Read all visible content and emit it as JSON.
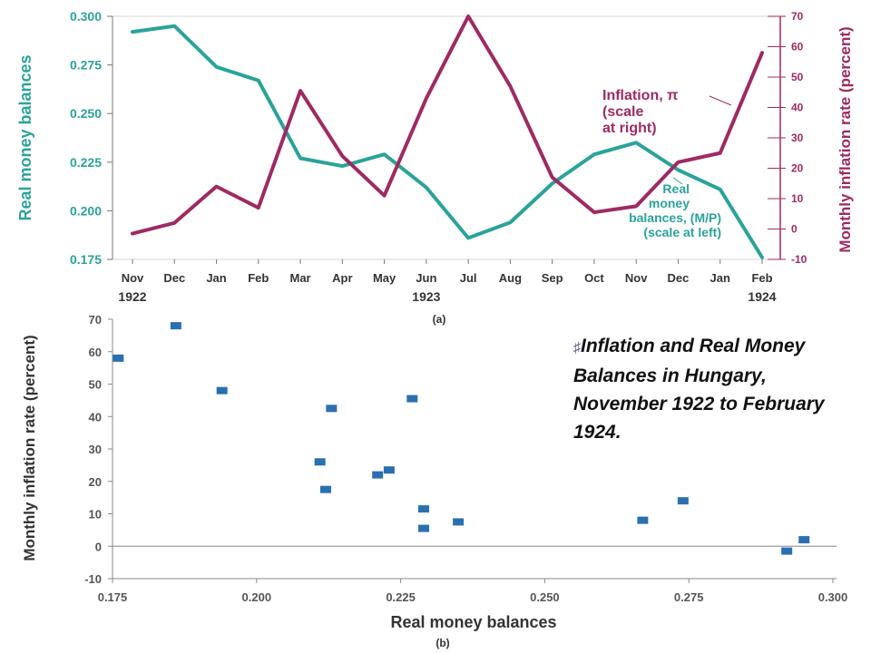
{
  "caption": {
    "bullet": "♯",
    "text": "Inflation and Real Money Balances in Hungary, November 1922 to February 1924."
  },
  "chart_data": [
    {
      "type": "line",
      "panel_label": "(a)",
      "categories": [
        "Nov",
        "Dec",
        "Jan",
        "Feb",
        "Mar",
        "Apr",
        "May",
        "Jun",
        "Jul",
        "Aug",
        "Sep",
        "Oct",
        "Nov",
        "Dec",
        "Jan",
        "Feb"
      ],
      "year_labels": [
        {
          "label": "1922",
          "category_index": 0
        },
        {
          "label": "1923",
          "category_index": 7
        },
        {
          "label": "1924",
          "category_index": 15
        }
      ],
      "left_axis": {
        "label": "Real money balances",
        "ylim": [
          0.175,
          0.3
        ],
        "ticks": [
          "0.300",
          "0.275",
          "0.250",
          "0.225",
          "0.200",
          "0.175"
        ],
        "tick_values": [
          0.3,
          0.275,
          0.25,
          0.225,
          0.2,
          0.175
        ]
      },
      "right_axis": {
        "label": "Monthly inflation rate (percent)",
        "ylim": [
          -10,
          70
        ],
        "ticks": [
          "70",
          "60",
          "50",
          "40",
          "30",
          "20",
          "10",
          "0",
          "-10"
        ],
        "tick_values": [
          70,
          60,
          50,
          40,
          30,
          20,
          10,
          0,
          -10
        ]
      },
      "series": [
        {
          "name": "Real money balances",
          "axis": "left",
          "color": "#2aa39a",
          "values": [
            0.292,
            0.295,
            0.274,
            0.267,
            0.227,
            0.223,
            0.229,
            0.212,
            0.186,
            0.194,
            0.214,
            0.229,
            0.235,
            0.221,
            0.211,
            0.176
          ],
          "annotation_lines": [
            "Real",
            "money",
            "balances, (M/P)",
            "(scale at left)"
          ]
        },
        {
          "name": "Inflation",
          "axis": "right",
          "color": "#9e2a63",
          "values": [
            -1.5,
            2,
            14,
            7,
            45.5,
            24,
            11,
            43,
            70,
            47,
            17,
            5.5,
            7.5,
            22,
            25,
            58
          ],
          "annotation_lines": [
            "Inflation, π",
            "(scale",
            "at right)"
          ]
        }
      ]
    },
    {
      "type": "scatter",
      "panel_label": "(b)",
      "xlabel": "Real money balances",
      "ylabel": "Monthly inflation rate (percent)",
      "xlim": [
        0.175,
        0.3
      ],
      "ylim": [
        -10,
        70
      ],
      "xticks": [
        "0.175",
        "0.200",
        "0.225",
        "0.250",
        "0.275",
        "0.300"
      ],
      "xtick_values": [
        0.175,
        0.2,
        0.225,
        0.25,
        0.275,
        0.3
      ],
      "yticks": [
        "70",
        "60",
        "50",
        "40",
        "30",
        "20",
        "10",
        "0",
        "-10"
      ],
      "ytick_values": [
        70,
        60,
        50,
        40,
        30,
        20,
        10,
        0,
        -10
      ],
      "marker_color": "#2a6fb0",
      "points": [
        {
          "x": 0.292,
          "y": -1.5
        },
        {
          "x": 0.295,
          "y": 2
        },
        {
          "x": 0.274,
          "y": 14
        },
        {
          "x": 0.267,
          "y": 8
        },
        {
          "x": 0.227,
          "y": 45.5
        },
        {
          "x": 0.223,
          "y": 23.5
        },
        {
          "x": 0.229,
          "y": 11.5
        },
        {
          "x": 0.213,
          "y": 42.5
        },
        {
          "x": 0.186,
          "y": 68
        },
        {
          "x": 0.194,
          "y": 48
        },
        {
          "x": 0.212,
          "y": 17.5
        },
        {
          "x": 0.229,
          "y": 5.5
        },
        {
          "x": 0.235,
          "y": 7.5
        },
        {
          "x": 0.221,
          "y": 22
        },
        {
          "x": 0.211,
          "y": 26
        },
        {
          "x": 0.176,
          "y": 58
        }
      ]
    }
  ]
}
